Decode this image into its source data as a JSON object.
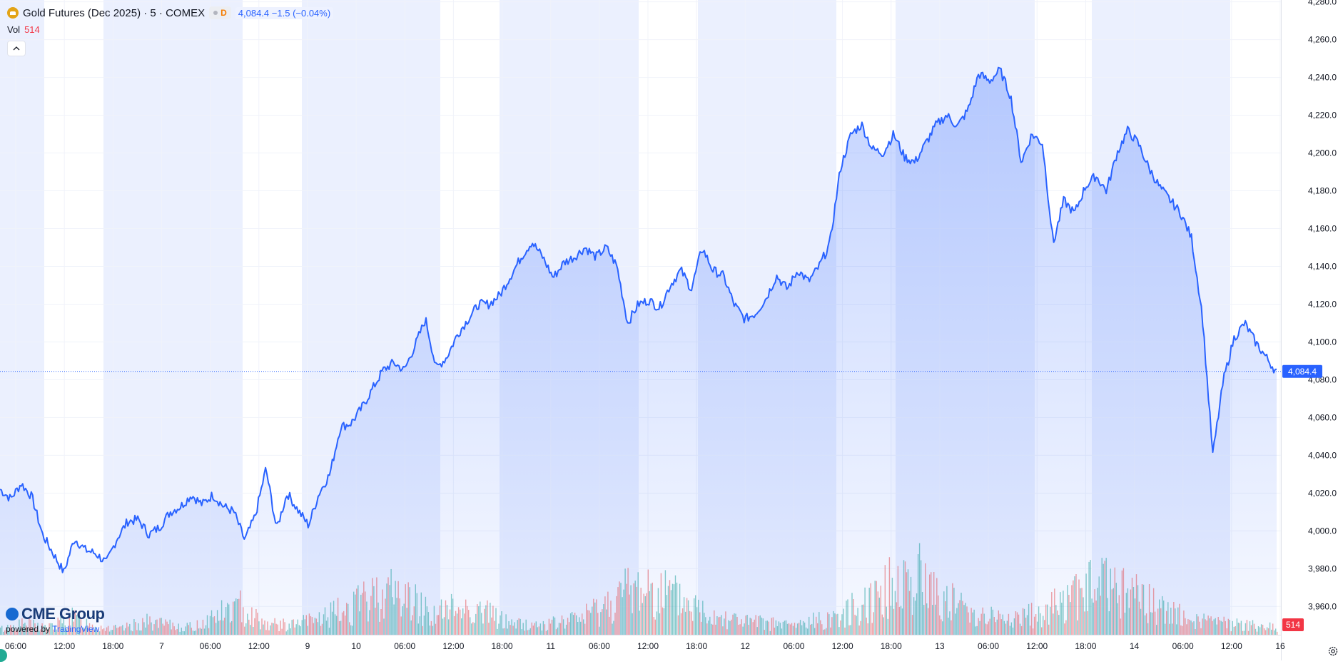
{
  "legend": {
    "symbol_icon": "gold-bars-icon",
    "title": "Gold Futures (Dec 2025) · 5 · COMEX",
    "delay_badge": "D",
    "price": "4,084.4",
    "change": "−1.5",
    "change_pct": "(−0.04%)"
  },
  "volume_legend": {
    "label": "Vol",
    "value": "514"
  },
  "collapse_icon": "chevron-up-icon",
  "branding": {
    "logo": "CME Group",
    "powered_prefix": "powered by",
    "powered_brand": "TradingView"
  },
  "settings_icon": "gear-icon",
  "colors": {
    "line": "#2962ff",
    "area_fill": "#2962ff",
    "session_shade": "#ebf0fe",
    "volume_up": "#26a69a",
    "volume_down": "#ef5350",
    "last_price_label": "#2962ff",
    "volume_label": "#f23645"
  },
  "chart_data": {
    "type": "area",
    "title": "Gold Futures (Dec 2025) · 5 · COMEX",
    "y_axis": {
      "position": "right",
      "ylim": [
        3945,
        4281
      ],
      "ticks": [
        "3,960.0",
        "3,980.0",
        "4,000.0",
        "4,020.0",
        "4,040.0",
        "4,060.0",
        "4,080.0",
        "4,100.0",
        "4,120.0",
        "4,140.0",
        "4,160.0",
        "4,180.0",
        "4,200.0",
        "4,220.0",
        "4,240.0",
        "4,260.0",
        "4,280.0"
      ]
    },
    "x_axis": {
      "ticks": [
        "06:00",
        "12:00",
        "18:00",
        "7",
        "06:00",
        "12:00",
        "9",
        "10",
        "06:00",
        "12:00",
        "18:00",
        "11",
        "06:00",
        "12:00",
        "18:00",
        "12",
        "06:00",
        "12:00",
        "18:00",
        "13",
        "06:00",
        "12:00",
        "18:00",
        "14",
        "06:00",
        "12:00",
        "16"
      ]
    },
    "last_price": "4,084.4",
    "last_volume": "514",
    "series": [
      {
        "values": [
          4022,
          4017,
          4025,
          4018,
          3998,
          3988,
          3978,
          3996,
          3990,
          3988,
          3983,
          3996,
          4005,
          4006,
          3998,
          4002,
          4010,
          4013,
          4019,
          4014,
          4019,
          4013,
          4010,
          3995,
          4008,
          4033,
          4001,
          4020,
          4011,
          4003,
          4020,
          4030,
          4055,
          4057,
          4065,
          4075,
          4085,
          4089,
          4085,
          4098,
          4112,
          4086,
          4092,
          4104,
          4112,
          4120,
          4120,
          4125,
          4135,
          4145,
          4153,
          4145,
          4134,
          4142,
          4145,
          4150,
          4145,
          4150,
          4140,
          4110,
          4120,
          4122,
          4118,
          4130,
          4138,
          4128,
          4150,
          4138,
          4135,
          4120,
          4112,
          4115,
          4123,
          4135,
          4128,
          4138,
          4132,
          4140,
          4152,
          4192,
          4210,
          4215,
          4202,
          4200,
          4210,
          4198,
          4195,
          4205,
          4215,
          4220,
          4214,
          4223,
          4242,
          4238,
          4244,
          4230,
          4195,
          4210,
          4205,
          4152,
          4175,
          4168,
          4182,
          4188,
          4180,
          4200,
          4212,
          4205,
          4192,
          4182,
          4175,
          4168,
          4155,
          4115,
          4040,
          4080,
          4102,
          4110,
          4100,
          4092,
          4084
        ]
      }
    ],
    "volume": {
      "label": "Vol",
      "description": "volume histogram at bottom of chart",
      "relative_peaks": [
        6,
        12,
        8,
        18,
        9,
        6,
        14,
        10,
        8,
        22,
        30,
        12,
        10,
        16,
        24,
        34,
        48,
        38,
        22,
        30,
        26,
        14,
        10,
        12,
        18,
        30,
        46,
        52,
        40,
        28,
        20,
        14,
        12,
        10,
        16,
        22,
        38,
        52,
        64,
        42,
        28,
        20,
        16,
        22,
        34,
        48,
        56,
        42,
        30,
        20,
        14,
        12,
        10,
        8
      ]
    }
  }
}
